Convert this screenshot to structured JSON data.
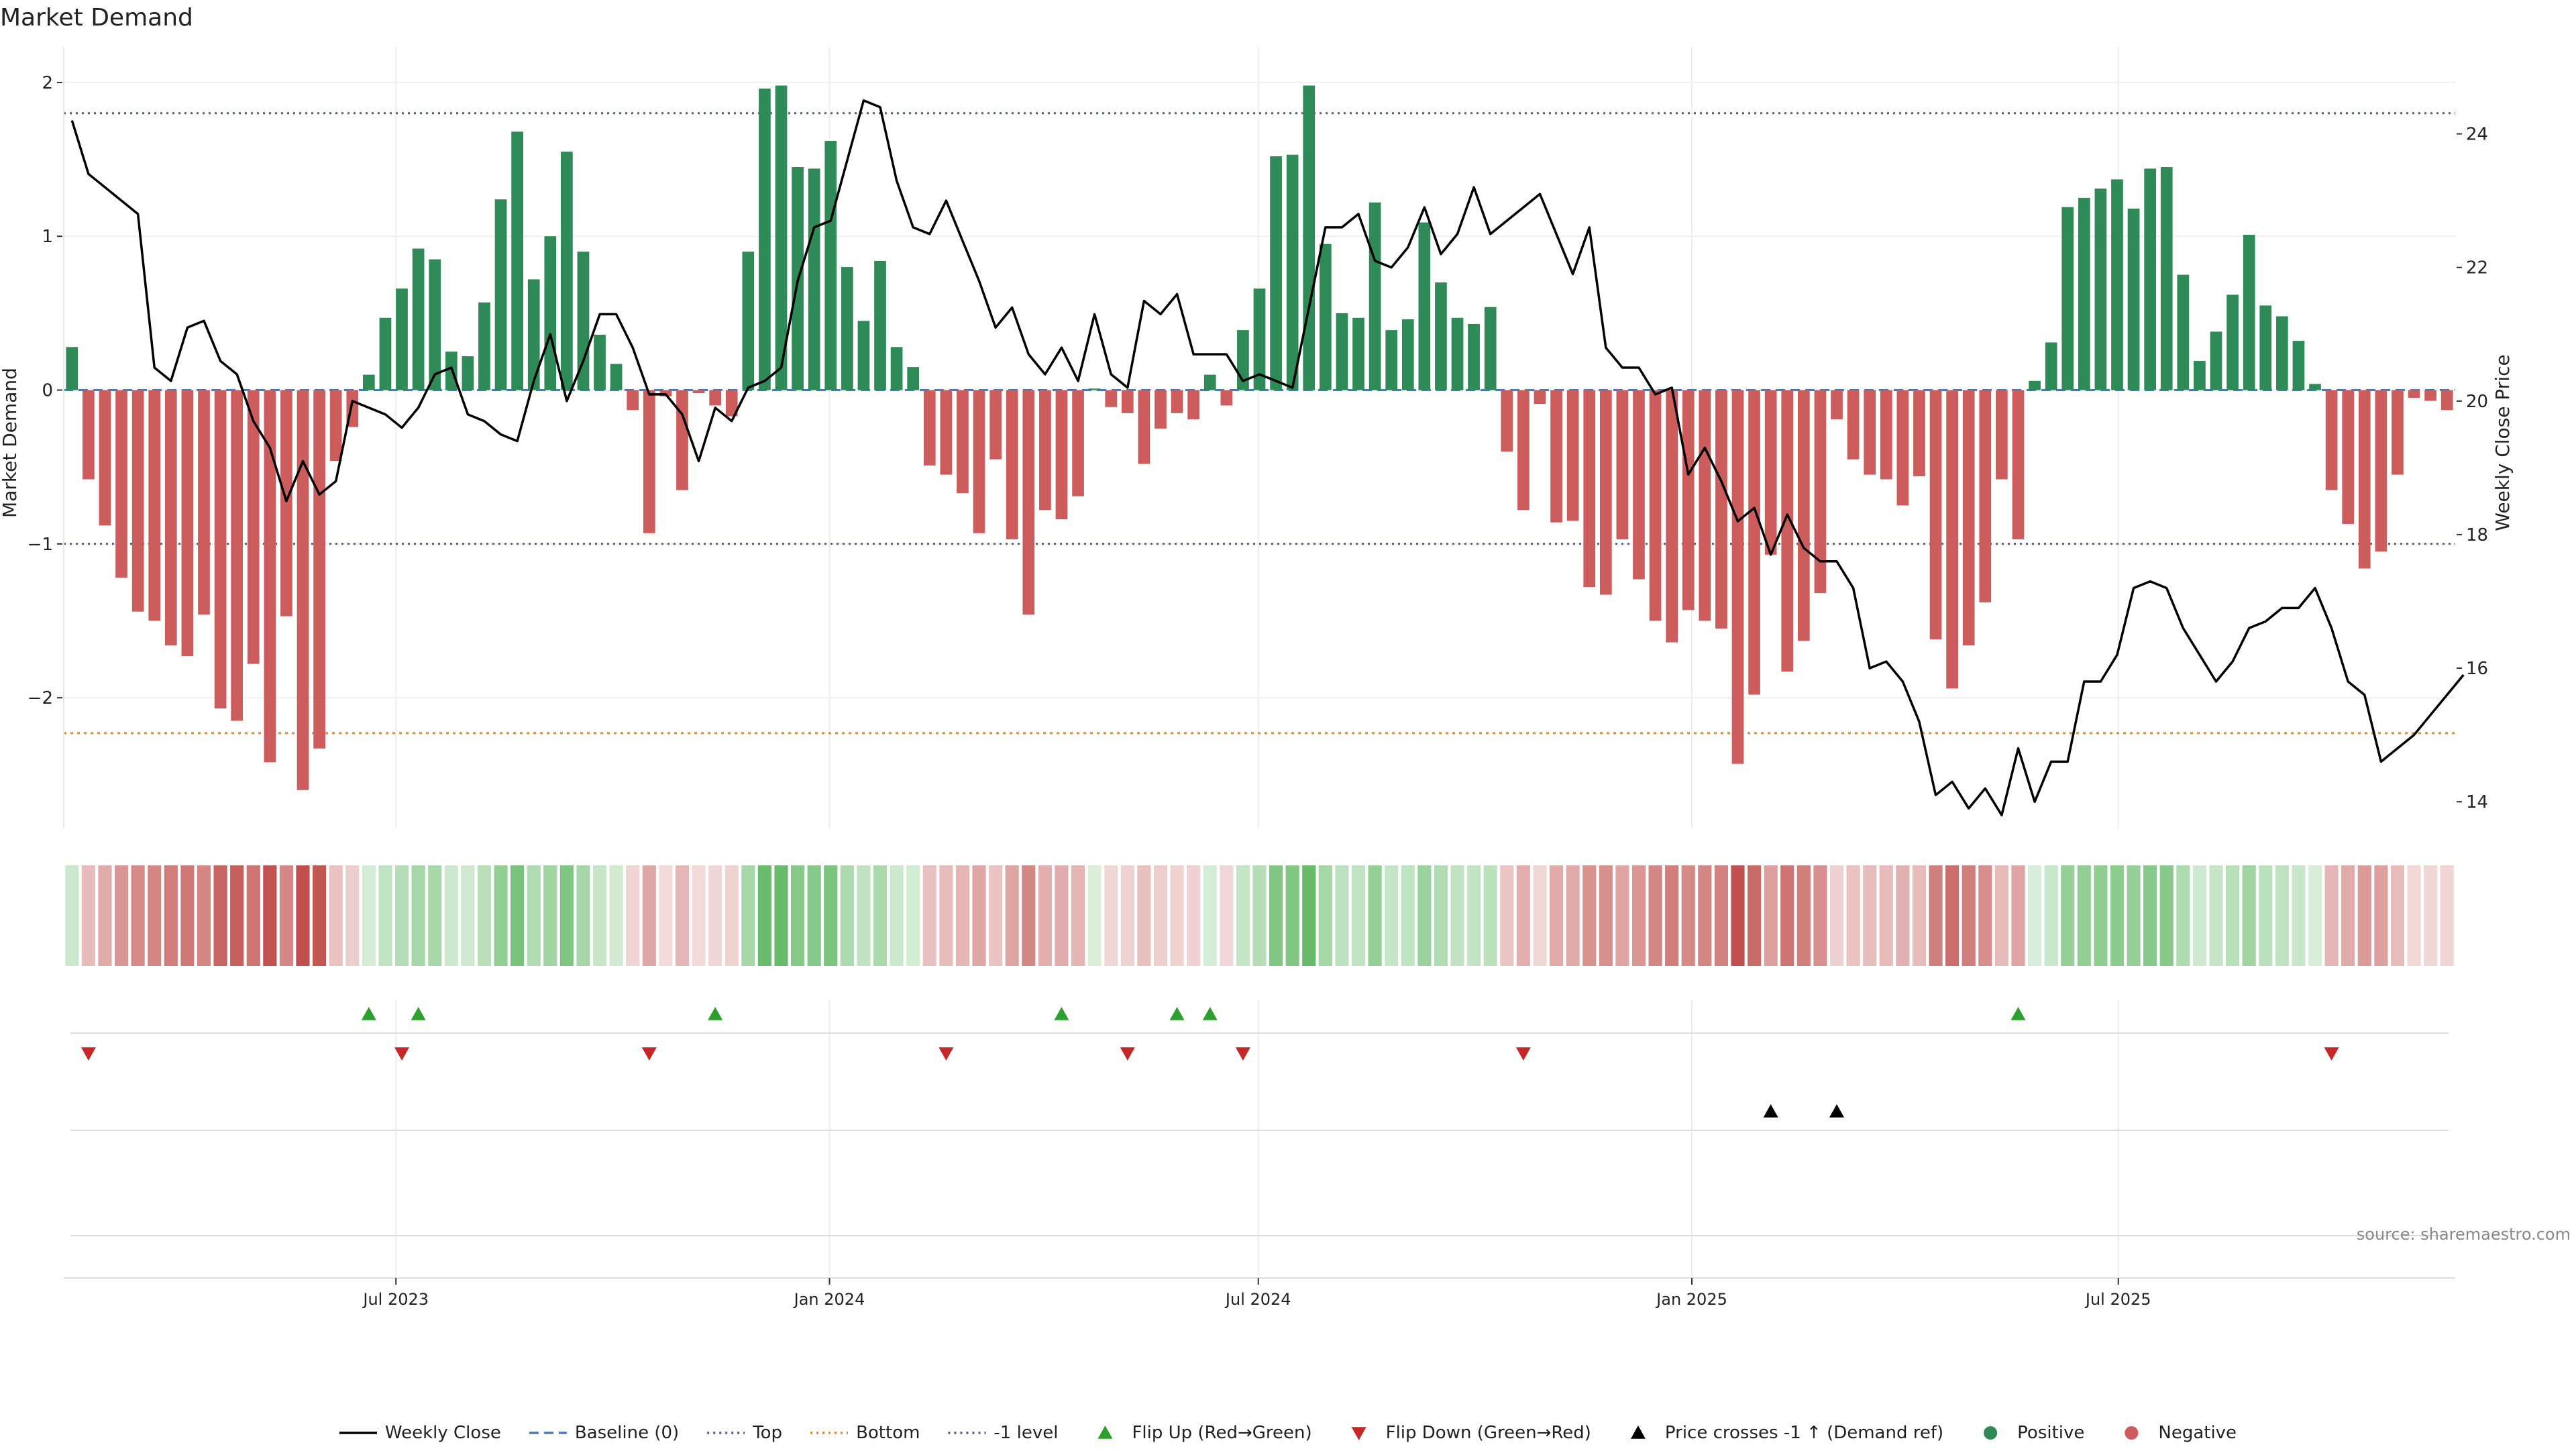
{
  "title": "Market Demand",
  "source": "source: sharemaestro.com",
  "colors": {
    "positive": "#2e8b57",
    "negative": "#cd5c5c",
    "price": "#000000",
    "baseline": "#4a7ab8",
    "top": "#555a8a",
    "bottom": "#e08a2c",
    "minus_one": "#555a8a",
    "flip_up": "#2ca02c",
    "flip_down": "#c62828",
    "cross": "#000000",
    "heat_pos": "#4caf50",
    "heat_neg": "#c0504d"
  },
  "chart_data": {
    "type": "bar",
    "title": "Market Demand",
    "ylabel": "Market Demand",
    "y2label": "Weekly Close Price",
    "ylim": [
      -2.85,
      2.1
    ],
    "y2lim": [
      13.6,
      25.0
    ],
    "yticks": [
      2,
      1,
      0,
      -1,
      -2
    ],
    "ytick_labels": [
      "2",
      "1",
      "0",
      "−1",
      "−2"
    ],
    "y2ticks": [
      24,
      22,
      20,
      18,
      16,
      14
    ],
    "y2tick_labels": [
      "24",
      "22",
      "20",
      "18",
      "16",
      "14"
    ],
    "x_start": "2023-02-10",
    "x_end": "2025-11-21",
    "xticks": [
      "2023-07-01",
      "2024-01-01",
      "2024-07-01",
      "2025-01-01",
      "2025-07-01"
    ],
    "xtick_labels": [
      "Jul 2023",
      "Jan 2024",
      "Jul 2024",
      "Jan 2025",
      "Jul 2025"
    ],
    "reference_lines": {
      "top": 1.8,
      "bottom": -2.23,
      "minus_one": -1.0,
      "baseline": 0
    },
    "grid": true,
    "legend_position": "bottom-center",
    "demand_values": [
      0.28,
      -0.58,
      -0.88,
      -1.22,
      -1.44,
      -1.5,
      -1.66,
      -1.73,
      -1.46,
      -2.07,
      -2.15,
      -1.78,
      -2.42,
      -1.47,
      -2.6,
      -2.33,
      -0.46,
      -0.24,
      0.1,
      0.47,
      0.66,
      0.92,
      0.85,
      0.25,
      0.22,
      0.57,
      1.24,
      1.68,
      0.72,
      1.0,
      1.55,
      0.9,
      0.36,
      0.17,
      -0.13,
      -0.93,
      -0.04,
      -0.65,
      -0.02,
      -0.1,
      -0.17,
      0.9,
      1.96,
      1.98,
      1.45,
      1.44,
      1.62,
      0.8,
      0.45,
      0.84,
      0.28,
      0.15,
      -0.49,
      -0.55,
      -0.67,
      -0.93,
      -0.45,
      -0.97,
      -1.46,
      -0.78,
      -0.84,
      -0.69,
      0.01,
      -0.11,
      -0.15,
      -0.48,
      -0.25,
      -0.15,
      -0.19,
      0.1,
      -0.1,
      0.39,
      0.66,
      1.52,
      1.53,
      1.98,
      0.95,
      0.5,
      0.47,
      1.22,
      0.39,
      0.46,
      1.09,
      0.7,
      0.47,
      0.43,
      0.54,
      -0.4,
      -0.78,
      -0.09,
      -0.86,
      -0.85,
      -1.28,
      -1.33,
      -0.97,
      -1.23,
      -1.5,
      -1.64,
      -1.43,
      -1.5,
      -1.55,
      -2.43,
      -1.98,
      -1.07,
      -1.83,
      -1.63,
      -1.32,
      -0.19,
      -0.45,
      -0.55,
      -0.58,
      -0.75,
      -0.56,
      -1.62,
      -1.94,
      -1.66,
      -1.38,
      -0.58,
      -0.97,
      0.06,
      0.31,
      1.19,
      1.25,
      1.31,
      1.37,
      1.18,
      1.44,
      1.45,
      0.75,
      0.19,
      0.38,
      0.62,
      1.01,
      0.55,
      0.48,
      0.32,
      0.04,
      -0.65,
      -0.87,
      -1.16,
      -1.05,
      -0.55,
      -0.05,
      -0.07,
      -0.13
    ],
    "price_values": [
      24.2,
      23.4,
      23.2,
      23.0,
      22.8,
      20.5,
      20.3,
      21.1,
      21.2,
      20.6,
      20.4,
      19.7,
      19.3,
      18.5,
      19.1,
      18.6,
      18.8,
      20.0,
      19.9,
      19.8,
      19.6,
      19.9,
      20.4,
      20.5,
      19.8,
      19.7,
      19.5,
      19.4,
      20.3,
      21.0,
      20.0,
      20.6,
      21.3,
      21.3,
      20.8,
      20.1,
      20.1,
      19.8,
      19.1,
      19.9,
      19.7,
      20.2,
      20.3,
      20.5,
      21.8,
      22.6,
      22.7,
      23.6,
      24.5,
      24.4,
      23.3,
      22.6,
      22.5,
      23.0,
      22.4,
      21.8,
      21.1,
      21.4,
      20.7,
      20.4,
      20.8,
      20.3,
      21.3,
      20.4,
      20.2,
      21.5,
      21.3,
      21.6,
      20.7,
      20.7,
      20.7,
      20.3,
      20.4,
      20.3,
      20.2,
      21.4,
      22.6,
      22.6,
      22.8,
      22.1,
      22.0,
      22.3,
      22.9,
      22.2,
      22.5,
      23.2,
      22.5,
      22.7,
      22.9,
      23.1,
      22.5,
      21.9,
      22.6,
      20.8,
      20.5,
      20.5,
      20.1,
      20.2,
      18.9,
      19.3,
      18.8,
      18.2,
      18.4,
      17.7,
      18.3,
      17.8,
      17.6,
      17.6,
      17.2,
      16.0,
      16.1,
      15.8,
      15.2,
      14.1,
      14.3,
      13.9,
      14.2,
      13.8,
      14.8,
      14.0,
      14.6,
      14.6,
      15.8,
      15.8,
      16.2,
      17.2,
      17.3,
      17.2,
      16.6,
      16.2,
      15.8,
      16.1,
      16.6,
      16.7,
      16.9,
      16.9,
      17.2,
      16.6,
      15.8,
      15.6,
      14.6,
      14.8,
      15.0,
      15.3,
      15.6,
      15.9
    ],
    "heat_values": [
      0.28,
      -0.58,
      -0.88,
      -1.22,
      -1.44,
      -1.5,
      -1.66,
      -1.73,
      -1.46,
      -2.07,
      -2.15,
      -1.78,
      -2.42,
      -1.47,
      -2.6,
      -2.33,
      -0.46,
      -0.24,
      0.1,
      0.47,
      0.66,
      0.92,
      0.85,
      0.25,
      0.22,
      0.57,
      1.24,
      1.68,
      0.72,
      1.0,
      1.55,
      0.9,
      0.36,
      0.17,
      -0.13,
      -0.93,
      -0.04,
      -0.65,
      -0.02,
      -0.1,
      -0.17,
      0.9,
      1.96,
      1.98,
      1.45,
      1.44,
      1.62,
      0.8,
      0.45,
      0.84,
      0.28,
      0.15,
      -0.49,
      -0.55,
      -0.67,
      -0.93,
      -0.45,
      -0.97,
      -1.46,
      -0.78,
      -0.84,
      -0.69,
      0.01,
      -0.11,
      -0.15,
      -0.48,
      -0.25,
      -0.15,
      -0.19,
      0.1,
      -0.1,
      0.39,
      0.66,
      1.52,
      1.53,
      1.98,
      0.95,
      0.5,
      0.47,
      1.22,
      0.39,
      0.46,
      1.09,
      0.7,
      0.47,
      0.43,
      0.54,
      -0.4,
      -0.78,
      -0.09,
      -0.86,
      -0.85,
      -1.28,
      -1.33,
      -0.97,
      -1.23,
      -1.5,
      -1.64,
      -1.43,
      -1.5,
      -1.55,
      -2.43,
      -1.98,
      -1.07,
      -1.83,
      -1.63,
      -1.32,
      -0.19,
      -0.45,
      -0.55,
      -0.58,
      -0.75,
      -0.56,
      -1.62,
      -1.94,
      -1.66,
      -1.38,
      -0.58,
      -0.97,
      0.06,
      0.31,
      1.19,
      1.25,
      1.31,
      1.37,
      1.18,
      1.44,
      1.45,
      0.75,
      0.19,
      0.38,
      0.62,
      1.01,
      0.55,
      0.48,
      0.32,
      0.04,
      -0.65,
      -0.87,
      -1.16,
      -1.05,
      -0.55,
      -0.05,
      -0.07,
      -0.13
    ],
    "flip_up_weeks": [
      18,
      21,
      39,
      60,
      67,
      69,
      118
    ],
    "flip_down_weeks": [
      1,
      20,
      35,
      53,
      64,
      71,
      88,
      137
    ],
    "price_cross_weeks": [
      103,
      107
    ],
    "legend": [
      {
        "label": "Weekly Close",
        "kind": "line",
        "color_key": "price"
      },
      {
        "label": "Baseline (0)",
        "kind": "dash",
        "color_key": "baseline"
      },
      {
        "label": "Top",
        "kind": "dot",
        "color_key": "top"
      },
      {
        "label": "Bottom",
        "kind": "dot",
        "color_key": "bottom"
      },
      {
        "label": "-1 level",
        "kind": "dot",
        "color_key": "minus_one"
      },
      {
        "label": "Flip Up (Red→Green)",
        "kind": "tri-up",
        "color_key": "flip_up"
      },
      {
        "label": "Flip Down (Green→Red)",
        "kind": "tri-down",
        "color_key": "flip_down"
      },
      {
        "label": "Price crosses -1 ↑ (Demand ref)",
        "kind": "tri-up",
        "color_key": "cross"
      },
      {
        "label": "Positive",
        "kind": "circle",
        "color_key": "positive"
      },
      {
        "label": "Negative",
        "kind": "circle",
        "color_key": "negative"
      }
    ]
  }
}
